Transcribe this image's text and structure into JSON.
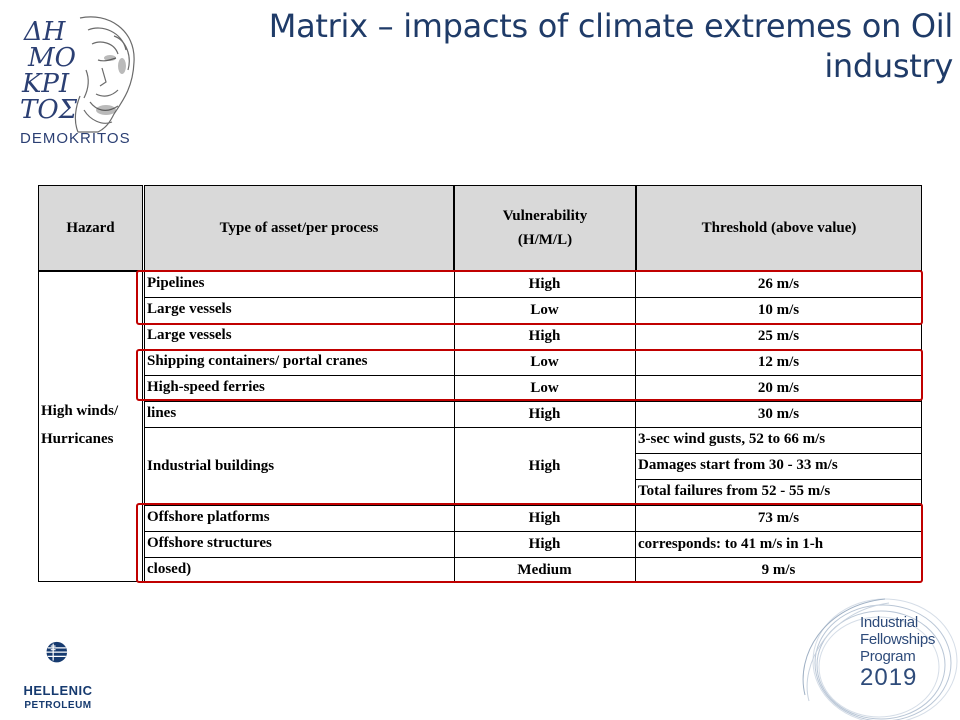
{
  "logos": {
    "democritos_name": "DEMOKRITOS",
    "democritos_monogram": [
      "ΔΗ",
      "ΜΟ",
      "ΚΡΙ",
      "ΤΟΣ"
    ],
    "hellenic_line1": "HELLENIC",
    "hellenic_line2": "PETROLEUM",
    "ifp_line1": "Industrial",
    "ifp_line2": "Fellowships",
    "ifp_line3": "Program",
    "ifp_year": "2019"
  },
  "title": {
    "line1": "Matrix – impacts of climate extremes on Oil",
    "line2": "industry"
  },
  "table": {
    "headers": {
      "hazard": "Hazard",
      "asset": "Type of asset/per process",
      "vulnerability_line1": "Vulnerability",
      "vulnerability_line2": "(H/M/L)",
      "threshold": "Threshold (above value)"
    },
    "hazard_line1": "High winds/",
    "hazard_line2": "Hurricanes",
    "rows": [
      {
        "asset": "Pipelines",
        "vulnerability": "High",
        "threshold": "26 m/s"
      },
      {
        "asset": "Large vessels",
        "vulnerability": "Low",
        "threshold": "10 m/s"
      },
      {
        "asset": "Large vessels",
        "vulnerability": "High",
        "threshold": "25 m/s"
      },
      {
        "asset": "Shipping containers/ portal cranes",
        "vulnerability": "Low",
        "threshold": "12 m/s"
      },
      {
        "asset": "High-speed ferries",
        "vulnerability": "Low",
        "threshold": "20 m/s"
      },
      {
        "asset": "lines",
        "vulnerability": "High",
        "threshold": "30 m/s"
      },
      {
        "asset": "Industrial buildings",
        "vulnerability": "High",
        "thresholds": [
          "3-sec wind gusts, 52 to 66 m/s",
          "Damages start from 30 - 33 m/s",
          "Total failures from 52 - 55 m/s"
        ]
      },
      {
        "asset": "Offshore platforms",
        "vulnerability": "High",
        "threshold": "73 m/s"
      },
      {
        "asset": "Offshore structures",
        "vulnerability": "High",
        "threshold": "corresponds: to 41 m/s in 1-h"
      },
      {
        "asset": "closed)",
        "vulnerability": "Medium",
        "threshold": "9 m/s"
      }
    ]
  },
  "colors": {
    "title": "#1f3b68",
    "header_bg": "#d9d9d9",
    "highlight": "#c00000"
  }
}
